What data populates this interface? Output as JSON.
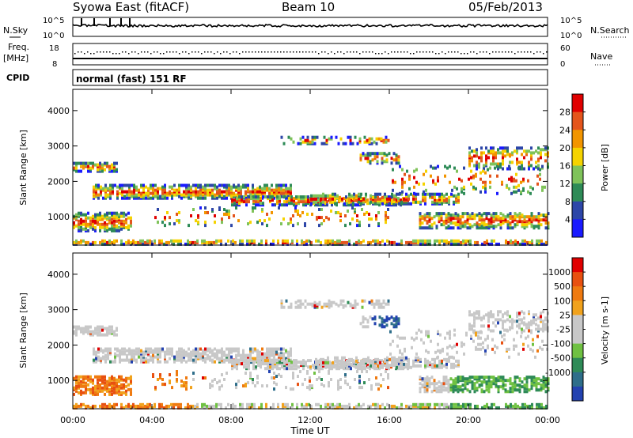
{
  "header": {
    "station": "Syowa East (fitACF)",
    "beam": "Beam 10",
    "date": "05/Feb/2013"
  },
  "nsky_panel": {
    "label": "N.Sky",
    "ytick_top": "10^5",
    "ytick_bottom": "10^0",
    "right_label": "N.Search",
    "right_tick_top": "10^5",
    "right_tick_bottom": "10^0"
  },
  "freq_panel": {
    "label_line1": "Freq.",
    "label_line2": "[MHz]",
    "ytick_top": "18",
    "ytick_bottom": "8",
    "right_label": "Nave",
    "right_tick_top": "60",
    "right_tick_bottom": "0"
  },
  "cpid_panel": {
    "label": "CPID",
    "mode_text": "normal (fast) 151 RF"
  },
  "chart_data": [
    {
      "type": "heatmap",
      "name": "power",
      "ylabel": "Slant Range [km]",
      "ylim": [
        200,
        4600
      ],
      "yticks": [
        "1000",
        "2000",
        "3000",
        "4000"
      ],
      "colorbar_label": "Power [dB]",
      "colorbar_ticks": [
        "4",
        "8",
        "12",
        "16",
        "20",
        "24",
        "28"
      ],
      "colors": [
        "#1a1aff",
        "#2d46a8",
        "#2e8b57",
        "#7fc35a",
        "#f5d300",
        "#f29500",
        "#e4551c",
        "#e00000"
      ]
    },
    {
      "type": "heatmap",
      "name": "velocity",
      "ylabel": "Slant Range [km]",
      "ylim": [
        200,
        4600
      ],
      "yticks": [
        "1000",
        "2000",
        "3000",
        "4000"
      ],
      "colorbar_label": "Velocity [m s-1]",
      "colorbar_ticks": [
        "1000",
        "500",
        "100",
        "25",
        "-25",
        "-100",
        "-500",
        "-1000"
      ],
      "colors": [
        "#2342b0",
        "#2e6e8a",
        "#2e8b57",
        "#6fc142",
        "#c8c8c8",
        "#c8c8c8",
        "#f1a21c",
        "#ef7a10",
        "#e85010",
        "#e00000"
      ]
    }
  ],
  "time_axis": {
    "xlabel": "Time UT",
    "ticks": [
      "00:00",
      "04:00",
      "08:00",
      "12:00",
      "16:00",
      "20:00",
      "00:00"
    ]
  }
}
